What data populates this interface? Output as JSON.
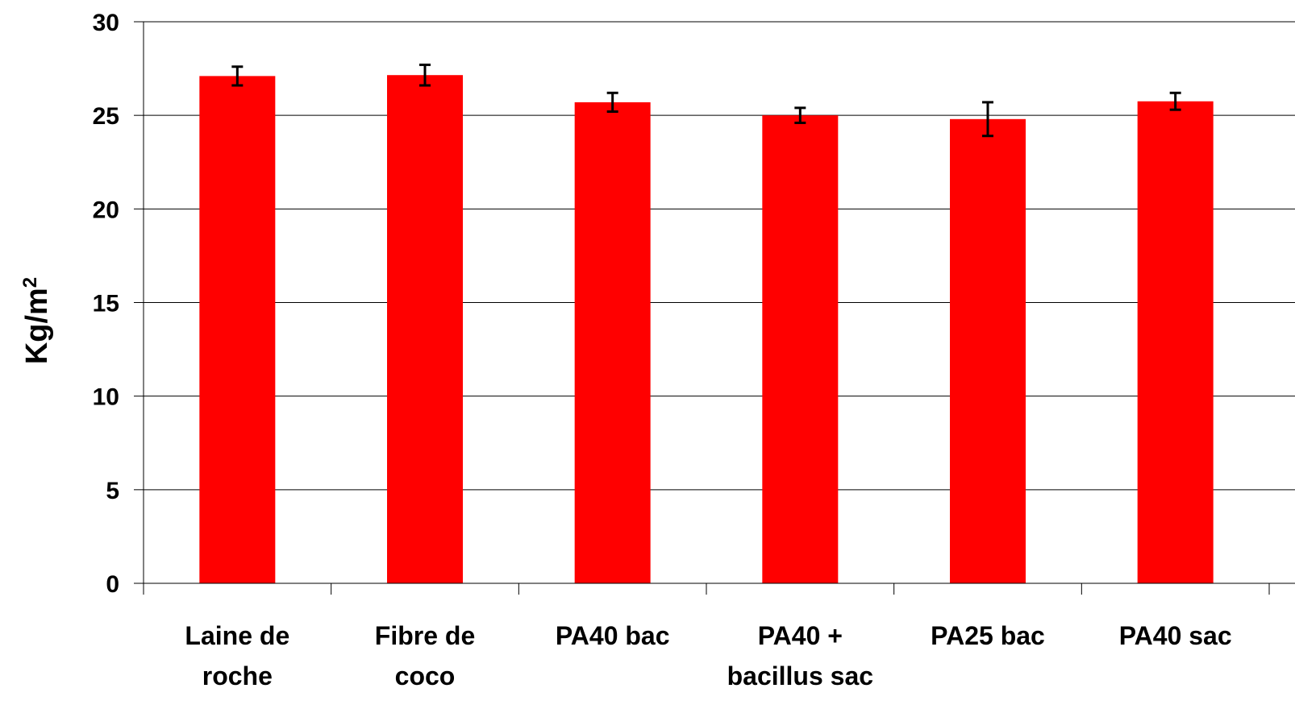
{
  "chart_data": {
    "type": "bar",
    "categories": [
      [
        "Laine de",
        "roche"
      ],
      [
        "Fibre de",
        "coco"
      ],
      [
        "PA40 bac"
      ],
      [
        "PA40 +",
        "bacillus sac"
      ],
      [
        "PA25 bac"
      ],
      [
        "PA40 sac"
      ]
    ],
    "values": [
      27.1,
      27.15,
      25.7,
      25.0,
      24.8,
      25.75
    ],
    "error": [
      0.5,
      0.55,
      0.5,
      0.4,
      0.9,
      0.45
    ],
    "ylabel": "Kg/m",
    "ylabel_superscript": "2",
    "ylim": [
      0,
      30
    ],
    "yticks": [
      0,
      5,
      10,
      15,
      20,
      25,
      30
    ],
    "grid": true,
    "bar_color": "#ff0000",
    "error_color": "#000000",
    "grid_color": "#000000"
  }
}
